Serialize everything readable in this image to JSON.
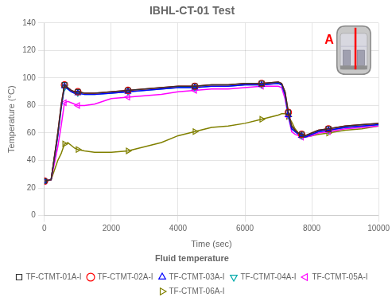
{
  "chart_data": {
    "type": "line",
    "title": "IBHL-CT-01 Test",
    "x_label": "Time (sec)",
    "y_label": "Temperature (°C)",
    "xlim": [
      0,
      10000
    ],
    "ylim": [
      0,
      140
    ],
    "xticks": [
      0,
      2000,
      4000,
      6000,
      8000,
      10000
    ],
    "yticks": [
      0,
      20,
      40,
      60,
      80,
      100,
      120,
      140
    ],
    "grid": true,
    "legend": "bottom",
    "legend_title": "Fluid temperature",
    "annotations": [
      {
        "text": "A",
        "color": "#FF0000"
      }
    ],
    "x": [
      0,
      200,
      400,
      500,
      600,
      700,
      800,
      900,
      1000,
      1200,
      1500,
      2000,
      2500,
      3000,
      3500,
      4000,
      4500,
      5000,
      5500,
      6000,
      6500,
      7000,
      7100,
      7200,
      7300,
      7400,
      7500,
      7600,
      7700,
      7800,
      8000,
      8200,
      8500,
      9000,
      9500,
      10000
    ],
    "series": [
      {
        "name": "TF-CTMT-01A-I",
        "color": "#333333",
        "marker": "square",
        "values": [
          25,
          26,
          60,
          80,
          95,
          93,
          91,
          90,
          90,
          89,
          89,
          90,
          91,
          92,
          93,
          94,
          94,
          95,
          95,
          96,
          96,
          97,
          96,
          90,
          75,
          65,
          62,
          60,
          59,
          58,
          60,
          62,
          63,
          65,
          66,
          67
        ]
      },
      {
        "name": "TF-CTMT-02A-I",
        "color": "#FF0000",
        "marker": "circle",
        "values": [
          25,
          26,
          60,
          80,
          95,
          93,
          91,
          90,
          90,
          89,
          89,
          90,
          91,
          92,
          93,
          94,
          94,
          95,
          95,
          96,
          96,
          97,
          96,
          90,
          75,
          65,
          62,
          60,
          59,
          58,
          60,
          62,
          63,
          65,
          66,
          67
        ]
      },
      {
        "name": "TF-CTMT-03A-I",
        "color": "#0000FF",
        "marker": "triangle_up",
        "values": [
          25,
          26,
          58,
          78,
          94,
          92,
          90,
          89,
          89,
          88,
          88,
          89,
          90,
          91,
          92,
          93,
          93,
          94,
          94,
          95,
          95,
          96,
          95,
          88,
          73,
          63,
          61,
          59,
          58,
          57,
          59,
          61,
          62,
          64,
          65,
          66
        ]
      },
      {
        "name": "TF-CTMT-04A-I",
        "color": "#00AAAA",
        "marker": "triangle_down",
        "values": [
          25,
          26,
          58,
          78,
          93,
          92,
          90,
          89,
          89,
          88,
          88,
          89,
          90,
          91,
          92,
          93,
          93,
          94,
          94,
          95,
          95,
          96,
          95,
          88,
          73,
          63,
          61,
          59,
          58,
          57,
          59,
          61,
          62,
          64,
          65,
          66
        ]
      },
      {
        "name": "TF-CTMT-05A-I",
        "color": "#FF00FF",
        "marker": "triangle_left",
        "values": [
          25,
          26,
          50,
          65,
          82,
          83,
          82,
          81,
          80,
          80,
          81,
          85,
          86,
          87,
          88,
          90,
          91,
          92,
          92,
          93,
          94,
          94,
          93,
          85,
          72,
          61,
          59,
          58,
          57,
          57,
          58,
          60,
          61,
          63,
          64,
          65
        ]
      },
      {
        "name": "TF-CTMT-06A-I",
        "color": "#808000",
        "marker": "triangle_right",
        "values": [
          25,
          26,
          40,
          45,
          52,
          53,
          51,
          49,
          48,
          47,
          46,
          46,
          47,
          50,
          53,
          58,
          61,
          64,
          65,
          67,
          70,
          73,
          74,
          74,
          72,
          68,
          63,
          60,
          58,
          57,
          58,
          59,
          60,
          62,
          63,
          65
        ]
      }
    ]
  }
}
